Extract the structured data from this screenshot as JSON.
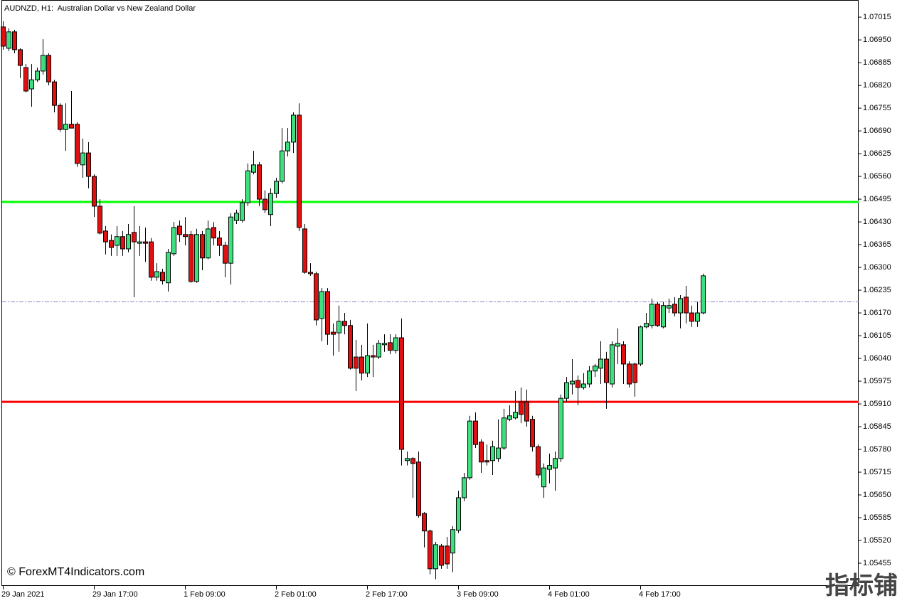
{
  "chart_data": {
    "type": "candlestick",
    "title": "AUDNZD, H1:  Australian Dollar vs New Zealand Dollar",
    "watermark": "© ForexMT4Indicators.com",
    "logo": "指标铺",
    "categories": [
      "29 Jan 2021",
      null,
      null,
      null,
      null,
      null,
      null,
      null,
      null,
      null,
      null,
      null,
      null,
      null,
      null,
      null,
      "29 Jan 17:00",
      null,
      null,
      null,
      null,
      null,
      null,
      null,
      null,
      null,
      null,
      null,
      null,
      null,
      null,
      null,
      "1 Feb 09:00",
      null,
      null,
      null,
      null,
      null,
      null,
      null,
      null,
      null,
      null,
      null,
      null,
      null,
      null,
      null,
      "2 Feb 01:00",
      null,
      null,
      null,
      null,
      null,
      null,
      null,
      null,
      null,
      null,
      null,
      null,
      null,
      null,
      null,
      "2 Feb 17:00",
      null,
      null,
      null,
      null,
      null,
      null,
      null,
      null,
      null,
      null,
      null,
      null,
      null,
      null,
      null,
      "3 Feb 09:00",
      null,
      null,
      null,
      null,
      null,
      null,
      null,
      null,
      null,
      null,
      null,
      null,
      null,
      null,
      null,
      "4 Feb 01:00",
      null,
      null,
      null,
      null,
      null,
      null,
      null,
      null,
      null,
      null,
      null,
      null,
      null,
      null,
      null,
      "4 Feb 17:00",
      null,
      null,
      null,
      null,
      null,
      null,
      null,
      null,
      null,
      null,
      null
    ],
    "open": [
      1.06987,
      1.06926,
      1.06973,
      1.06922,
      1.06871,
      1.0681,
      1.06836,
      1.06861,
      1.06906,
      1.0683,
      1.06763,
      1.06694,
      1.06709,
      1.06709,
      1.06593,
      1.06627,
      1.0656,
      1.06475,
      1.06404,
      1.06377,
      1.06363,
      1.06388,
      1.06353,
      1.064,
      1.06369,
      1.06373,
      1.06373,
      1.06272,
      1.06286,
      1.06256,
      1.06339,
      1.06418,
      1.06394,
      1.06394,
      1.0626,
      1.06394,
      1.06327,
      1.06414,
      1.06384,
      1.06363,
      1.06312,
      1.06434,
      1.06434,
      1.06485,
      1.06572,
      1.06593,
      1.06495,
      1.06451,
      1.06511,
      1.06546,
      1.06633,
      1.06658,
      1.06735,
      1.0641,
      1.06286,
      1.06282,
      1.06154,
      1.06231,
      1.06115,
      1.06113,
      1.06146,
      1.06134,
      1.06044,
      1.06044,
      1.05998,
      1.06048,
      1.06044,
      1.06079,
      1.06085,
      1.06063,
      1.06099,
      1.05748,
      1.05754,
      1.05744,
      1.05597,
      1.05547,
      1.05439,
      1.05504,
      1.05504,
      1.05484,
      1.05549,
      1.05642,
      1.05699,
      1.05861,
      1.05801,
      1.05748,
      1.05748,
      1.05754,
      1.05784,
      1.05866,
      1.0587,
      1.05916,
      1.05916,
      1.05866,
      1.05788,
      1.05673,
      1.05723,
      1.05727,
      1.05754,
      1.05926,
      1.05967,
      1.05977,
      1.05957,
      1.05967,
      1.06004,
      1.06012,
      1.06038,
      1.05967,
      1.06075,
      1.06079,
      1.06024,
      1.06024,
      1.06024,
      1.0613,
      1.06134,
      1.06195,
      1.0613,
      1.06184,
      1.06195,
      1.0617,
      1.06215,
      1.0617,
      1.06146,
      1.0617
    ],
    "high": [
      1.07003,
      1.06983,
      1.06979,
      1.06926,
      1.06881,
      1.06881,
      1.06871,
      1.06952,
      1.06912,
      1.06836,
      1.06769,
      1.06769,
      1.06804,
      1.06715,
      1.06668,
      1.06658,
      1.06566,
      1.06495,
      1.06418,
      1.06394,
      1.06418,
      1.06404,
      1.06424,
      1.06475,
      1.06418,
      1.06414,
      1.06384,
      1.06312,
      1.06296,
      1.06353,
      1.0643,
      1.06434,
      1.06444,
      1.06404,
      1.0641,
      1.06404,
      1.06434,
      1.0643,
      1.06404,
      1.06373,
      1.06455,
      1.06465,
      1.06495,
      1.06597,
      1.06633,
      1.06601,
      1.0652,
      1.06526,
      1.06556,
      1.06698,
      1.06698,
      1.06743,
      1.06769,
      1.06424,
      1.06312,
      1.06288,
      1.06241,
      1.06241,
      1.0614,
      1.06191,
      1.0617,
      1.0615,
      1.06093,
      1.06079,
      1.0614,
      1.06079,
      1.06093,
      1.06109,
      1.06109,
      1.06109,
      1.06154,
      1.05774,
      1.05758,
      1.05774,
      1.05601,
      1.05551,
      1.05516,
      1.0551,
      1.0553,
      1.05561,
      1.05662,
      1.05713,
      1.05876,
      1.05886,
      1.05809,
      1.05794,
      1.05805,
      1.05866,
      1.05896,
      1.05906,
      1.05947,
      1.05957,
      1.05951,
      1.05876,
      1.05794,
      1.0574,
      1.05768,
      1.05774,
      1.05937,
      1.05987,
      1.06038,
      1.05991,
      1.05998,
      1.06018,
      1.06024,
      1.06089,
      1.06059,
      1.06089,
      1.06126,
      1.06089,
      1.06032,
      1.06028,
      1.06134,
      1.0617,
      1.06211,
      1.06201,
      1.06201,
      1.06211,
      1.06215,
      1.06221,
      1.06247,
      1.06191,
      1.06201,
      1.06282
    ],
    "low": [
      1.06922,
      1.06918,
      1.06912,
      1.06841,
      1.068,
      1.06759,
      1.0683,
      1.06851,
      1.0682,
      1.06743,
      1.06688,
      1.06633,
      1.06698,
      1.06587,
      1.06556,
      1.06526,
      1.06444,
      1.06394,
      1.06337,
      1.06333,
      1.06333,
      1.06333,
      1.06343,
      1.06215,
      1.06333,
      1.06316,
      1.06262,
      1.06262,
      1.06251,
      1.06231,
      1.06333,
      1.06373,
      1.06363,
      1.06256,
      1.06256,
      1.06292,
      1.06323,
      1.06363,
      1.06333,
      1.06272,
      1.06251,
      1.06424,
      1.06428,
      1.06475,
      1.06566,
      1.06475,
      1.06455,
      1.06418,
      1.06499,
      1.0654,
      1.06617,
      1.06627,
      1.06404,
      1.06282,
      1.06276,
      1.06134,
      1.06089,
      1.06079,
      1.06048,
      1.06059,
      1.06109,
      1.06008,
      1.05947,
      1.05977,
      1.05987,
      1.05987,
      1.06038,
      1.06059,
      1.06052,
      1.06054,
      1.05734,
      1.05734,
      1.05642,
      1.05585,
      1.055,
      1.05423,
      1.05409,
      1.05439,
      1.05439,
      1.05429,
      1.05541,
      1.05632,
      1.05693,
      1.05784,
      1.05713,
      1.05734,
      1.05707,
      1.05744,
      1.05778,
      1.05861,
      1.05866,
      1.05855,
      1.05845,
      1.05774,
      1.05699,
      1.05642,
      1.05683,
      1.05662,
      1.05744,
      1.05916,
      1.05937,
      1.05906,
      1.05951,
      1.05957,
      1.05987,
      1.05967,
      1.05896,
      1.05957,
      1.06024,
      1.05967,
      1.05957,
      1.05931,
      1.06018,
      1.06126,
      1.06126,
      1.0613,
      1.06126,
      1.0617,
      1.0616,
      1.06126,
      1.0614,
      1.0613,
      1.0613,
      1.06166
    ],
    "close": [
      1.06932,
      1.06973,
      1.06922,
      1.06877,
      1.06804,
      1.06836,
      1.06861,
      1.06906,
      1.0683,
      1.06763,
      1.06694,
      1.06709,
      1.06698,
      1.06597,
      1.06627,
      1.0656,
      1.06475,
      1.06398,
      1.06373,
      1.06357,
      1.06388,
      1.06353,
      1.06394,
      1.06373,
      1.06373,
      1.06369,
      1.06272,
      1.06288,
      1.06262,
      1.06343,
      1.06414,
      1.06394,
      1.06388,
      1.0626,
      1.06394,
      1.06327,
      1.0641,
      1.06384,
      1.06363,
      1.06312,
      1.06444,
      1.06455,
      1.06485,
      1.06576,
      1.06593,
      1.06495,
      1.06465,
      1.06511,
      1.06546,
      1.06633,
      1.06658,
      1.06735,
      1.06414,
      1.06286,
      1.06282,
      1.0615,
      1.06231,
      1.06109,
      1.06109,
      1.06146,
      1.06134,
      1.06012,
      1.06012,
      1.05998,
      1.06048,
      1.06044,
      1.06083,
      1.06083,
      1.06063,
      1.06099,
      1.0578,
      1.05754,
      1.0574,
      1.05591,
      1.05547,
      1.05439,
      1.05508,
      1.05449,
      1.05453,
      1.05551,
      1.05642,
      1.05699,
      1.05861,
      1.05794,
      1.05744,
      1.05744,
      1.05788,
      1.05784,
      1.0587,
      1.05876,
      1.05886,
      1.0588,
      1.05861,
      1.05788,
      1.05707,
      1.05727,
      1.05734,
      1.05754,
      1.05926,
      1.05971,
      1.05975,
      1.05957,
      1.05967,
      1.06004,
      1.06018,
      1.06038,
      1.05971,
      1.06079,
      1.06083,
      1.06024,
      1.05967,
      1.05971,
      1.0613,
      1.0614,
      1.06195,
      1.06134,
      1.06191,
      1.06191,
      1.0617,
      1.06211,
      1.0617,
      1.06146,
      1.0617,
      1.06276
    ],
    "bull_color": "#3ee07e",
    "bear_color": "#e01010",
    "levels": [
      {
        "value": 1.06487,
        "color": "#00ff00"
      },
      {
        "value": 1.05916,
        "color": "#ff0000"
      }
    ],
    "bid_line": {
      "value": 1.06203,
      "color": "#8e7cc3"
    },
    "ylim": [
      1.0539,
      1.07064
    ],
    "yticks": [
      1.07015,
      {
        "value": 1.0695,
        "label": "1.06950"
      },
      1.06885,
      {
        "value": 1.0682,
        "label": "1.06820"
      },
      1.06755,
      {
        "value": 1.0669,
        "label": "1.06690"
      },
      1.06625,
      {
        "value": 1.0656,
        "label": "1.06560"
      },
      1.06495,
      {
        "value": 1.0643,
        "label": "1.06430"
      },
      1.06365,
      {
        "value": 1.063,
        "label": "1.06300"
      },
      1.06235,
      {
        "value": 1.0617,
        "label": "1.06170"
      },
      1.06105,
      {
        "value": 1.0604,
        "label": "1.06040"
      },
      1.05975,
      {
        "value": 1.0591,
        "label": "1.05910"
      },
      1.05845,
      {
        "value": 1.0578,
        "label": "1.05780"
      },
      1.05715,
      {
        "value": 1.0565,
        "label": "1.05650"
      },
      1.05585,
      {
        "value": 1.0552,
        "label": "1.05520"
      },
      1.05455
    ]
  }
}
